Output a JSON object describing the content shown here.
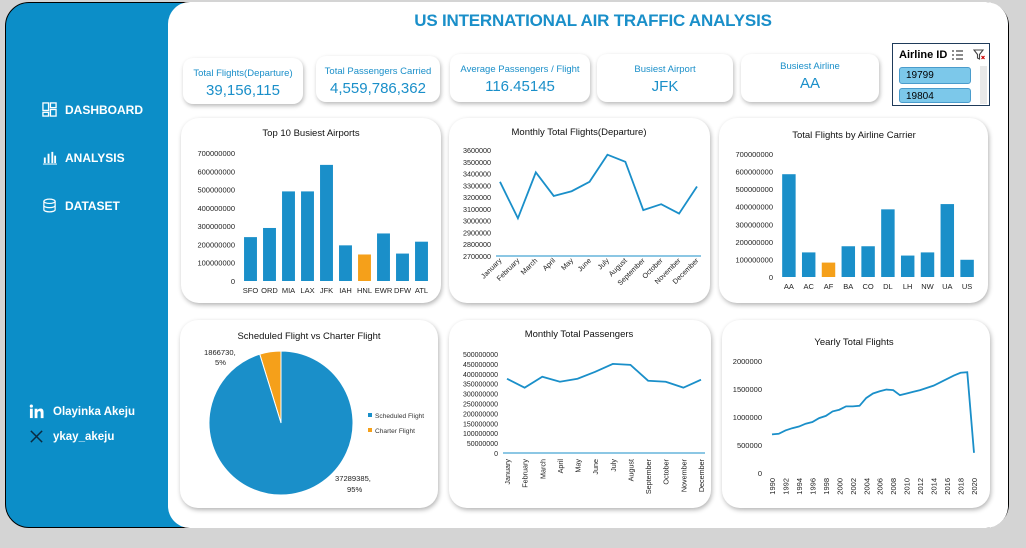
{
  "title": "US INTERNATIONAL AIR TRAFFIC ANALYSIS",
  "nav": [
    {
      "label": "DASHBOARD",
      "icon": "dashboard-icon"
    },
    {
      "label": "ANALYSIS",
      "icon": "bar-chart-icon"
    },
    {
      "label": "DATASET",
      "icon": "database-icon"
    }
  ],
  "social": [
    {
      "label": "Olayinka Akeju",
      "icon": "linkedin-icon"
    },
    {
      "label": "ykay_akeju",
      "icon": "x-icon"
    }
  ],
  "kpis": [
    {
      "label": "Total Flights(Departure)",
      "value": "39,156,115"
    },
    {
      "label": "Total Passengers Carried",
      "value": "4,559,786,362"
    },
    {
      "label": "Average Passengers / Flight",
      "value": "116.45145"
    },
    {
      "label": "Busiest Airport",
      "value": "JFK"
    },
    {
      "label": "Busiest Airline",
      "value": "AA"
    }
  ],
  "slicer": {
    "title": "Airline ID",
    "items": [
      "19799",
      "19804"
    ]
  },
  "colors": {
    "primary": "#1a8fc9",
    "highlight": "#f5a01a",
    "sidebar": "#0c8ec8"
  },
  "chart_data": [
    {
      "type": "bar",
      "title": "Top 10 Busiest Airports",
      "categories": [
        "SFO",
        "ORD",
        "MIA",
        "LAX",
        "JFK",
        "IAH",
        "HNL",
        "EWR",
        "DFW",
        "ATL"
      ],
      "values": [
        240000000,
        290000000,
        490000000,
        490000000,
        635000000,
        195000000,
        145000000,
        260000000,
        150000000,
        215000000
      ],
      "highlight": [
        "HNL"
      ],
      "ylim": [
        0,
        700000000
      ],
      "yticks": [
        "0",
        "100000000",
        "200000000",
        "300000000",
        "400000000",
        "500000000",
        "600000000",
        "700000000"
      ]
    },
    {
      "type": "line",
      "title": "Monthly Total Flights(Departure)",
      "categories": [
        "January",
        "February",
        "March",
        "April",
        "May",
        "June",
        "July",
        "August",
        "September",
        "October",
        "November",
        "December"
      ],
      "values": [
        3330000,
        3020000,
        3410000,
        3210000,
        3250000,
        3330000,
        3560000,
        3500000,
        3090000,
        3140000,
        3060000,
        3290000
      ],
      "ylim": [
        2700000,
        3600000
      ],
      "yticks": [
        "2700000",
        "2800000",
        "2900000",
        "3000000",
        "3100000",
        "3200000",
        "3300000",
        "3400000",
        "3500000",
        "3600000"
      ]
    },
    {
      "type": "bar",
      "title": "Total Flights by Airline Carrier",
      "categories": [
        "AA",
        "AC",
        "AF",
        "BA",
        "CO",
        "DL",
        "LH",
        "NW",
        "UA",
        "US"
      ],
      "values": [
        585000000,
        140000000,
        82000000,
        175000000,
        175000000,
        385000000,
        122000000,
        140000000,
        415000000,
        98000000
      ],
      "highlight": [
        "AF"
      ],
      "ylim": [
        0,
        700000000
      ],
      "yticks": [
        "0",
        "100000000",
        "200000000",
        "300000000",
        "400000000",
        "500000000",
        "600000000",
        "700000000"
      ]
    },
    {
      "type": "pie",
      "title": "Scheduled Flight vs Charter Flight",
      "series": [
        {
          "name": "Scheduled Flight",
          "value": 37289385,
          "label": "37289385,",
          "pct": "95%"
        },
        {
          "name": "Charter Flight",
          "value": 1866730,
          "label": "1866730,",
          "pct": "5%"
        }
      ]
    },
    {
      "type": "line",
      "title": "Monthly Total Passengers",
      "categories": [
        "January",
        "February",
        "March",
        "April",
        "May",
        "June",
        "July",
        "August",
        "September",
        "October",
        "November",
        "December"
      ],
      "values": [
        375000000,
        330000000,
        385000000,
        360000000,
        375000000,
        410000000,
        450000000,
        445000000,
        365000000,
        360000000,
        330000000,
        370000000
      ],
      "ylim": [
        0,
        500000000
      ],
      "yticks": [
        "0",
        "50000000",
        "100000000",
        "150000000",
        "200000000",
        "250000000",
        "300000000",
        "350000000",
        "400000000",
        "450000000",
        "500000000"
      ]
    },
    {
      "type": "line",
      "title": "Yearly Total Flights",
      "x": [
        1990,
        1991,
        1992,
        1993,
        1994,
        1995,
        1996,
        1997,
        1998,
        1999,
        2000,
        2001,
        2002,
        2003,
        2004,
        2005,
        2006,
        2007,
        2008,
        2009,
        2010,
        2011,
        2012,
        2013,
        2014,
        2015,
        2016,
        2017,
        2018,
        2019,
        2020
      ],
      "values": [
        690000,
        700000,
        760000,
        800000,
        830000,
        880000,
        910000,
        980000,
        1020000,
        1100000,
        1130000,
        1190000,
        1190000,
        1200000,
        1340000,
        1420000,
        1460000,
        1490000,
        1480000,
        1390000,
        1420000,
        1450000,
        1480000,
        1520000,
        1560000,
        1620000,
        1680000,
        1740000,
        1790000,
        1800000,
        360000
      ],
      "xticks": [
        "1990",
        "1992",
        "1994",
        "1996",
        "1998",
        "2000",
        "2002",
        "2004",
        "2006",
        "2008",
        "2010",
        "2012",
        "2014",
        "2016",
        "2018",
        "2020"
      ],
      "ylim": [
        0,
        2000000
      ],
      "yticks": [
        "0",
        "500000",
        "1000000",
        "1500000",
        "2000000"
      ]
    }
  ]
}
